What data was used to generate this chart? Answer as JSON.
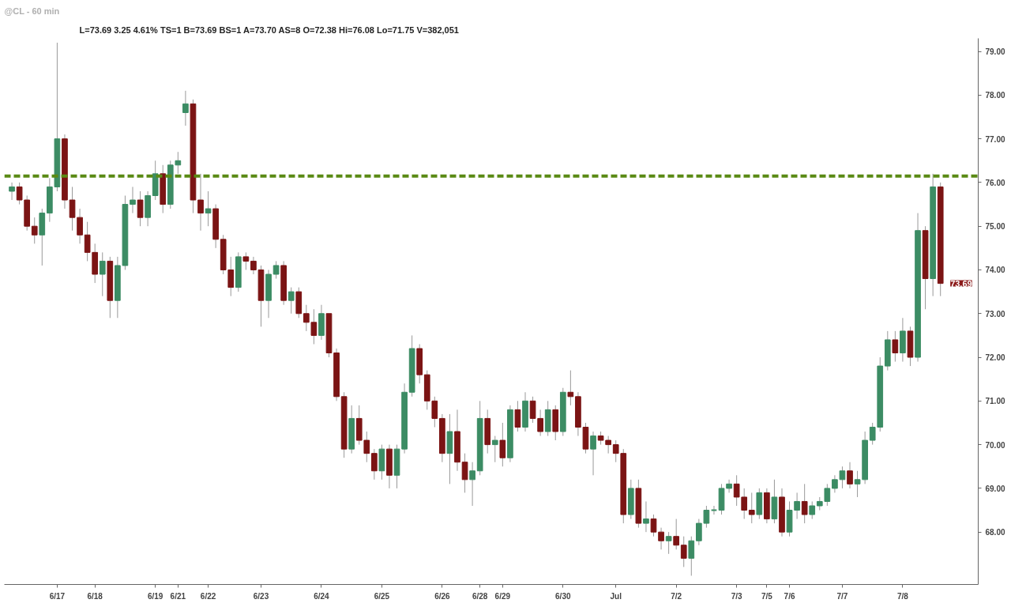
{
  "chart_data": {
    "type": "candlestick",
    "title": "@CL - 60 min",
    "subtitle": "L=73.69 3.25 4.61% TS=1 B=73.69 BS=1 A=73.70 AS=8 O=72.38 Hi=76.08 Lo=71.75 V=382,051",
    "categories": [
      null,
      null,
      null,
      null,
      null,
      null,
      "6/17",
      null,
      null,
      null,
      null,
      "6/18",
      null,
      null,
      null,
      null,
      null,
      null,
      null,
      "6/19",
      null,
      null,
      "6/21",
      null,
      null,
      null,
      "6/22",
      null,
      null,
      null,
      null,
      null,
      null,
      "6/23",
      null,
      null,
      null,
      null,
      null,
      null,
      null,
      "6/24",
      null,
      null,
      null,
      null,
      null,
      null,
      null,
      "6/25",
      null,
      null,
      null,
      null,
      null,
      null,
      null,
      "6/26",
      null,
      null,
      null,
      null,
      "6/28",
      null,
      null,
      "6/29",
      null,
      null,
      null,
      null,
      null,
      null,
      null,
      "6/30",
      null,
      null,
      null,
      null,
      null,
      null,
      "Jul",
      null,
      null,
      null,
      null,
      null,
      null,
      null,
      "7/2",
      null,
      null,
      null,
      null,
      null,
      null,
      null,
      "7/3",
      null,
      null,
      null,
      "7/5",
      null,
      null,
      "7/6",
      null,
      null,
      null,
      null,
      null,
      null,
      "7/7",
      null,
      null,
      null,
      null,
      null,
      null,
      null,
      "7/8",
      null,
      null,
      null,
      null,
      null
    ],
    "ohlc": [
      [
        75.8,
        76.0,
        75.6,
        75.9
      ],
      [
        75.9,
        76.0,
        75.5,
        75.6
      ],
      [
        75.6,
        75.7,
        74.9,
        75.0
      ],
      [
        75.0,
        75.2,
        74.6,
        74.8
      ],
      [
        74.8,
        75.4,
        74.1,
        75.3
      ],
      [
        75.3,
        76.1,
        75.1,
        75.9
      ],
      [
        75.9,
        79.2,
        75.8,
        77.0
      ],
      [
        77.0,
        77.1,
        75.4,
        75.6
      ],
      [
        75.6,
        75.9,
        74.9,
        75.2
      ],
      [
        75.2,
        75.4,
        74.6,
        74.8
      ],
      [
        74.8,
        75.1,
        74.2,
        74.4
      ],
      [
        74.4,
        74.6,
        73.7,
        73.9
      ],
      [
        73.9,
        74.4,
        73.4,
        74.2
      ],
      [
        74.2,
        74.3,
        72.9,
        73.3
      ],
      [
        73.3,
        74.3,
        72.9,
        74.1
      ],
      [
        74.1,
        75.7,
        74.0,
        75.5
      ],
      [
        75.5,
        75.9,
        75.3,
        75.6
      ],
      [
        75.6,
        75.8,
        75.0,
        75.2
      ],
      [
        75.2,
        75.8,
        75.0,
        75.7
      ],
      [
        75.7,
        76.5,
        75.6,
        76.2
      ],
      [
        76.2,
        76.4,
        75.3,
        75.5
      ],
      [
        75.5,
        76.5,
        75.4,
        76.4
      ],
      [
        76.4,
        76.7,
        76.2,
        76.5
      ],
      [
        77.6,
        78.1,
        77.3,
        77.8
      ],
      [
        77.8,
        77.9,
        75.3,
        75.6
      ],
      [
        75.6,
        76.2,
        74.9,
        75.3
      ],
      [
        75.3,
        75.8,
        75.0,
        75.4
      ],
      [
        75.4,
        75.5,
        74.5,
        74.7
      ],
      [
        74.7,
        74.8,
        73.9,
        74.0
      ],
      [
        74.0,
        74.3,
        73.4,
        73.6
      ],
      [
        73.6,
        74.4,
        73.5,
        74.3
      ],
      [
        74.3,
        74.4,
        74.0,
        74.2
      ],
      [
        74.2,
        74.3,
        73.9,
        74.0
      ],
      [
        74.0,
        74.1,
        72.7,
        73.3
      ],
      [
        73.3,
        74.0,
        72.9,
        73.9
      ],
      [
        73.9,
        74.2,
        73.8,
        74.1
      ],
      [
        74.1,
        74.2,
        73.2,
        73.3
      ],
      [
        73.3,
        73.6,
        73.0,
        73.5
      ],
      [
        73.5,
        73.6,
        72.9,
        73.0
      ],
      [
        73.0,
        73.2,
        72.6,
        72.8
      ],
      [
        72.8,
        73.1,
        72.3,
        72.5
      ],
      [
        72.5,
        73.2,
        72.4,
        73.0
      ],
      [
        73.0,
        73.0,
        72.0,
        72.1
      ],
      [
        72.1,
        72.2,
        71.0,
        71.1
      ],
      [
        71.1,
        71.2,
        69.7,
        69.9
      ],
      [
        69.9,
        70.9,
        69.8,
        70.6
      ],
      [
        70.6,
        70.9,
        70.0,
        70.1
      ],
      [
        70.1,
        70.3,
        69.6,
        69.8
      ],
      [
        69.8,
        69.9,
        69.2,
        69.4
      ],
      [
        69.4,
        70.0,
        69.2,
        69.9
      ],
      [
        69.9,
        70.0,
        69.0,
        69.3
      ],
      [
        69.3,
        70.0,
        69.0,
        69.9
      ],
      [
        69.9,
        71.4,
        69.8,
        71.2
      ],
      [
        71.2,
        72.5,
        71.1,
        72.2
      ],
      [
        72.2,
        72.3,
        71.4,
        71.6
      ],
      [
        71.6,
        71.7,
        70.8,
        71.0
      ],
      [
        71.0,
        71.1,
        70.4,
        70.6
      ],
      [
        70.6,
        70.7,
        69.6,
        69.8
      ],
      [
        69.8,
        70.7,
        69.1,
        70.3
      ],
      [
        70.3,
        70.8,
        69.4,
        69.6
      ],
      [
        69.6,
        69.8,
        68.9,
        69.2
      ],
      [
        69.2,
        69.6,
        68.6,
        69.4
      ],
      [
        69.4,
        71.0,
        69.3,
        70.6
      ],
      [
        70.6,
        70.8,
        69.8,
        70.0
      ],
      [
        70.0,
        70.2,
        69.6,
        70.1
      ],
      [
        70.1,
        70.5,
        69.5,
        69.7
      ],
      [
        69.7,
        70.9,
        69.6,
        70.8
      ],
      [
        70.8,
        71.0,
        70.3,
        70.4
      ],
      [
        70.4,
        71.2,
        70.3,
        71.0
      ],
      [
        71.0,
        71.1,
        70.5,
        70.6
      ],
      [
        70.6,
        70.8,
        70.2,
        70.3
      ],
      [
        70.3,
        71.0,
        70.2,
        70.8
      ],
      [
        70.8,
        70.9,
        70.1,
        70.3
      ],
      [
        70.3,
        71.3,
        70.2,
        71.2
      ],
      [
        71.2,
        71.7,
        70.9,
        71.1
      ],
      [
        71.1,
        71.2,
        70.2,
        70.4
      ],
      [
        70.4,
        70.5,
        69.8,
        69.9
      ],
      [
        69.9,
        70.3,
        69.3,
        70.2
      ],
      [
        70.2,
        70.3,
        70.0,
        70.1
      ],
      [
        70.1,
        70.2,
        69.8,
        70.0
      ],
      [
        70.0,
        70.1,
        69.6,
        69.8
      ],
      [
        69.8,
        69.9,
        68.2,
        68.4
      ],
      [
        68.4,
        69.2,
        68.3,
        69.0
      ],
      [
        69.0,
        69.2,
        68.1,
        68.2
      ],
      [
        68.2,
        68.7,
        68.0,
        68.3
      ],
      [
        68.3,
        68.4,
        67.9,
        68.0
      ],
      [
        68.0,
        68.1,
        67.6,
        67.8
      ],
      [
        67.8,
        68.0,
        67.5,
        67.9
      ],
      [
        67.9,
        68.3,
        67.6,
        67.7
      ],
      [
        67.7,
        67.9,
        67.2,
        67.4
      ],
      [
        67.4,
        67.9,
        67.0,
        67.8
      ],
      [
        67.8,
        68.3,
        67.7,
        68.2
      ],
      [
        68.2,
        68.6,
        68.1,
        68.5
      ],
      [
        68.5,
        68.6,
        68.4,
        68.5
      ],
      [
        68.5,
        69.1,
        68.4,
        69.0
      ],
      [
        69.0,
        69.2,
        68.9,
        69.1
      ],
      [
        69.1,
        69.3,
        68.6,
        68.8
      ],
      [
        68.8,
        69.0,
        68.3,
        68.5
      ],
      [
        68.5,
        68.9,
        68.2,
        68.4
      ],
      [
        68.4,
        69.0,
        68.3,
        68.9
      ],
      [
        68.9,
        69.0,
        68.2,
        68.3
      ],
      [
        68.3,
        69.2,
        68.2,
        68.8
      ],
      [
        68.8,
        69.0,
        67.9,
        68.0
      ],
      [
        68.0,
        68.7,
        67.9,
        68.5
      ],
      [
        68.5,
        68.9,
        68.3,
        68.7
      ],
      [
        68.7,
        69.1,
        68.2,
        68.4
      ],
      [
        68.4,
        68.7,
        68.3,
        68.6
      ],
      [
        68.6,
        68.8,
        68.5,
        68.7
      ],
      [
        68.7,
        69.1,
        68.6,
        69.0
      ],
      [
        69.0,
        69.3,
        68.9,
        69.2
      ],
      [
        69.2,
        69.5,
        69.0,
        69.4
      ],
      [
        69.4,
        69.6,
        69.0,
        69.1
      ],
      [
        69.1,
        69.4,
        68.8,
        69.2
      ],
      [
        69.2,
        70.3,
        69.1,
        70.1
      ],
      [
        70.1,
        70.5,
        70.0,
        70.4
      ],
      [
        70.4,
        72.0,
        70.3,
        71.8
      ],
      [
        71.8,
        72.6,
        71.7,
        72.4
      ],
      [
        72.4,
        72.6,
        71.9,
        72.1
      ],
      [
        72.1,
        72.9,
        71.9,
        72.6
      ],
      [
        72.6,
        72.7,
        71.8,
        72.0
      ],
      [
        72.0,
        75.3,
        71.9,
        74.9
      ],
      [
        74.9,
        75.0,
        73.1,
        73.8
      ],
      [
        73.8,
        76.2,
        73.4,
        75.9
      ],
      [
        75.9,
        76.0,
        73.4,
        73.69
      ]
    ],
    "colors": [
      "#3c8c64",
      "#7b1414",
      "#7b1414",
      "#7b1414",
      "#3c8c64",
      "#3c8c64",
      "#3c8c64",
      "#7b1414",
      "#7b1414",
      "#7b1414",
      "#7b1414",
      "#7b1414",
      "#3c8c64",
      "#7b1414",
      "#3c8c64",
      "#3c8c64",
      "#3c8c64",
      "#7b1414",
      "#3c8c64",
      "#3c8c64",
      "#7b1414",
      "#3c8c64",
      "#3c8c64",
      "#3c8c64",
      "#7b1414",
      "#7b1414",
      "#3c8c64",
      "#7b1414",
      "#7b1414",
      "#7b1414",
      "#3c8c64",
      "#7b1414",
      "#7b1414",
      "#7b1414",
      "#3c8c64",
      "#3c8c64",
      "#7b1414",
      "#3c8c64",
      "#7b1414",
      "#7b1414",
      "#7b1414",
      "#3c8c64",
      "#7b1414",
      "#7b1414",
      "#7b1414",
      "#3c8c64",
      "#7b1414",
      "#7b1414",
      "#7b1414",
      "#3c8c64",
      "#7b1414",
      "#3c8c64",
      "#3c8c64",
      "#3c8c64",
      "#7b1414",
      "#7b1414",
      "#7b1414",
      "#7b1414",
      "#3c8c64",
      "#7b1414",
      "#7b1414",
      "#3c8c64",
      "#3c8c64",
      "#7b1414",
      "#3c8c64",
      "#7b1414",
      "#3c8c64",
      "#7b1414",
      "#3c8c64",
      "#7b1414",
      "#7b1414",
      "#3c8c64",
      "#7b1414",
      "#3c8c64",
      "#7b1414",
      "#7b1414",
      "#7b1414",
      "#3c8c64",
      "#7b1414",
      "#7b1414",
      "#7b1414",
      "#7b1414",
      "#3c8c64",
      "#7b1414",
      "#3c8c64",
      "#7b1414",
      "#7b1414",
      "#3c8c64",
      "#7b1414",
      "#7b1414",
      "#3c8c64",
      "#3c8c64",
      "#3c8c64",
      "#3c8c64",
      "#3c8c64",
      "#3c8c64",
      "#7b1414",
      "#7b1414",
      "#7b1414",
      "#3c8c64",
      "#7b1414",
      "#3c8c64",
      "#7b1414",
      "#3c8c64",
      "#3c8c64",
      "#7b1414",
      "#3c8c64",
      "#3c8c64",
      "#3c8c64",
      "#3c8c64",
      "#3c8c64",
      "#7b1414",
      "#3c8c64",
      "#3c8c64",
      "#3c8c64",
      "#3c8c64",
      "#3c8c64",
      "#7b1414",
      "#3c8c64",
      "#7b1414",
      "#3c8c64",
      "#7b1414",
      "#3c8c64",
      "#7b1414"
    ],
    "ylim": [
      66.8,
      79.3
    ],
    "yticks": [
      {
        "value": 68,
        "label": "68.00"
      },
      {
        "value": 69,
        "label": "69.00"
      },
      {
        "value": 70,
        "label": "70.00"
      },
      {
        "value": 71,
        "label": "71.00"
      },
      {
        "value": 72,
        "label": "72.00"
      },
      {
        "value": 73,
        "label": "73.00"
      },
      {
        "value": 74,
        "label": "74.00"
      },
      {
        "value": 75,
        "label": "75.00"
      },
      {
        "value": 76,
        "label": "76.00"
      },
      {
        "value": 77,
        "label": "77.00"
      },
      {
        "value": 78,
        "label": "78.00"
      },
      {
        "value": 79,
        "label": "79.00"
      }
    ],
    "ref_lines": [
      {
        "axis": "y",
        "value": 76.15,
        "label": null,
        "color": "#5a8a14",
        "line_style": "dashed"
      }
    ],
    "annotations": [
      "73.69"
    ],
    "grid": false
  }
}
